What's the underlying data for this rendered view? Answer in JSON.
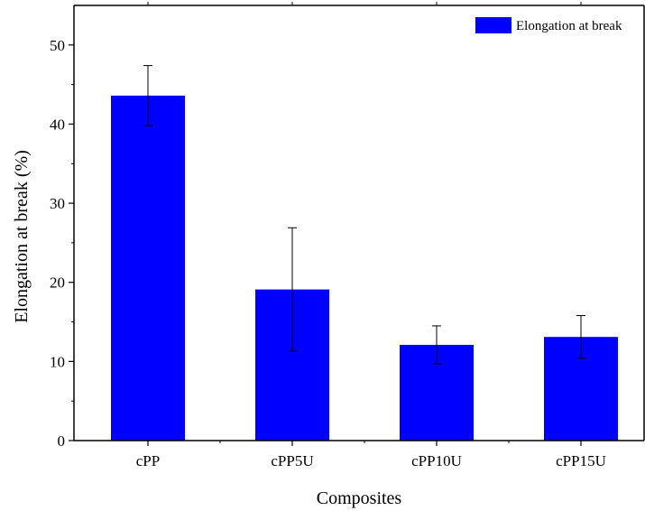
{
  "chart_data": {
    "type": "bar",
    "categories": [
      "cPP",
      "cPP5U",
      "cPP10U",
      "cPP15U"
    ],
    "series": [
      {
        "name": "Elongation at break",
        "values": [
          43.6,
          19.1,
          12.1,
          13.1
        ],
        "errors": [
          3.8,
          7.8,
          2.4,
          2.7
        ]
      }
    ],
    "xlabel": "Composites",
    "ylabel": "Elongation at break (%)",
    "ylim": [
      0,
      55
    ],
    "yticks": [
      0,
      10,
      20,
      30,
      40,
      50
    ],
    "grid": false,
    "legend": "top-right",
    "colors": {
      "bar": "#0000ff",
      "axis": "#000000"
    }
  }
}
